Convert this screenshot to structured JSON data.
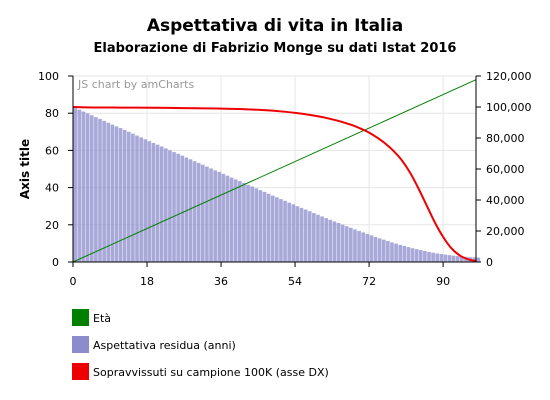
{
  "chart_data": {
    "type": "line",
    "title": "Aspettativa di vita in Italia",
    "subtitle": "Elaborazione di Fabrizio Monge su dati Istat 2016",
    "credit": "JS chart by amCharts",
    "ylabel": "Axis title",
    "xlabel": "",
    "x_ticks": [
      "0",
      "18",
      "36",
      "54",
      "72",
      "90"
    ],
    "y_left_ticks": [
      "0",
      "20",
      "40",
      "60",
      "80",
      "100"
    ],
    "y_right_ticks": [
      "0",
      "20,000",
      "40,000",
      "60,000",
      "80,000",
      "100,000",
      "120,000"
    ],
    "xlim": [
      0,
      98
    ],
    "ylim_left": [
      0,
      100
    ],
    "ylim_right": [
      0,
      120000
    ],
    "grid": true,
    "legend_position": "bottom-left",
    "series": [
      {
        "name": "Età",
        "type": "line",
        "axis": "left",
        "color": "#008000",
        "x": [
          0,
          98
        ],
        "values": [
          0,
          98
        ]
      },
      {
        "name": "Aspettativa residua (anni)",
        "type": "bar",
        "axis": "left",
        "color": "#8c8ccc",
        "x": [
          0,
          1,
          2,
          3,
          4,
          5,
          6,
          7,
          8,
          9,
          10,
          11,
          12,
          13,
          14,
          15,
          16,
          17,
          18,
          19,
          20,
          21,
          22,
          23,
          24,
          25,
          26,
          27,
          28,
          29,
          30,
          31,
          32,
          33,
          34,
          35,
          36,
          37,
          38,
          39,
          40,
          41,
          42,
          43,
          44,
          45,
          46,
          47,
          48,
          49,
          50,
          51,
          52,
          53,
          54,
          55,
          56,
          57,
          58,
          59,
          60,
          61,
          62,
          63,
          64,
          65,
          66,
          67,
          68,
          69,
          70,
          71,
          72,
          73,
          74,
          75,
          76,
          77,
          78,
          79,
          80,
          81,
          82,
          83,
          84,
          85,
          86,
          87,
          88,
          89,
          90,
          91,
          92,
          93,
          94,
          95,
          96,
          97,
          98
        ],
        "values": [
          82.7,
          81.9,
          80.9,
          79.9,
          78.9,
          77.9,
          76.9,
          75.9,
          74.9,
          73.9,
          72.9,
          72.0,
          71.0,
          70.0,
          69.0,
          68.0,
          67.0,
          66.0,
          65.0,
          64.0,
          63.1,
          62.1,
          61.1,
          60.1,
          59.1,
          58.2,
          57.2,
          56.2,
          55.2,
          54.2,
          53.3,
          52.3,
          51.3,
          50.3,
          49.3,
          48.4,
          47.4,
          46.4,
          45.4,
          44.4,
          43.5,
          42.5,
          41.5,
          40.6,
          39.6,
          38.6,
          37.7,
          36.7,
          35.7,
          34.8,
          33.8,
          32.9,
          31.9,
          31.0,
          30.0,
          29.1,
          28.2,
          27.3,
          26.3,
          25.4,
          24.5,
          23.6,
          22.7,
          21.8,
          21.0,
          20.1,
          19.2,
          18.4,
          17.5,
          16.7,
          15.9,
          15.1,
          14.3,
          13.5,
          12.7,
          12.0,
          11.3,
          10.5,
          9.9,
          9.2,
          8.6,
          8.0,
          7.4,
          6.9,
          6.4,
          5.9,
          5.4,
          5.0,
          4.6,
          4.3,
          4.0,
          3.7,
          3.4,
          3.2,
          3.0,
          2.8,
          2.6,
          2.5,
          2.4
        ]
      },
      {
        "name": "Sopravvissuti su campione 100K  (asse DX)",
        "type": "line",
        "axis": "right",
        "color": "#ee0000",
        "x": [
          0,
          5,
          10,
          15,
          20,
          25,
          30,
          35,
          40,
          45,
          50,
          55,
          60,
          62,
          64,
          66,
          68,
          70,
          72,
          74,
          76,
          78,
          80,
          82,
          84,
          86,
          88,
          90,
          92,
          94,
          96,
          98
        ],
        "values": [
          100000,
          99700,
          99650,
          99600,
          99500,
          99350,
          99200,
          99000,
          98700,
          98200,
          97300,
          95900,
          93800,
          92700,
          91400,
          89900,
          88200,
          86000,
          83500,
          80200,
          76300,
          71500,
          65500,
          57500,
          47500,
          36500,
          25500,
          16200,
          8900,
          4300,
          1800,
          600
        ]
      }
    ]
  }
}
